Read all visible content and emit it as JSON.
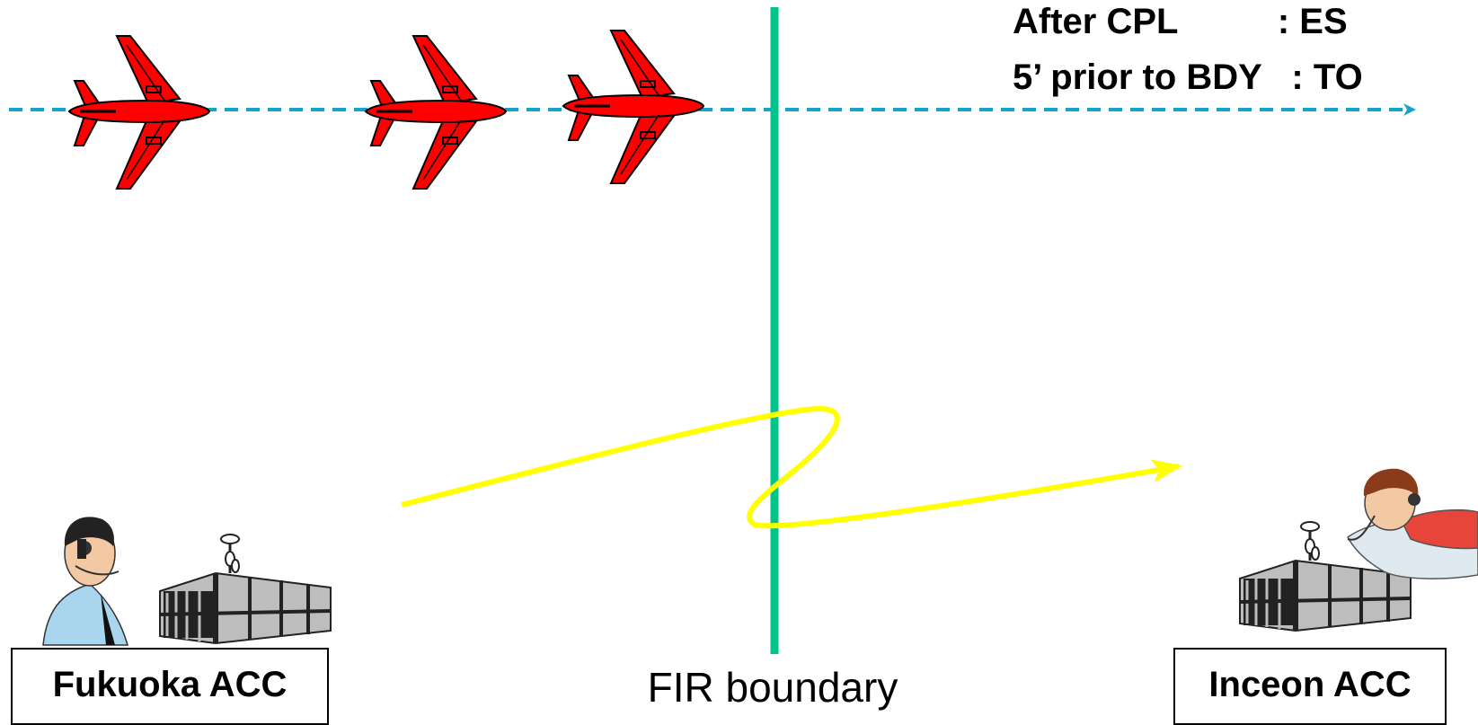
{
  "notes": {
    "line1": "After CPL          : ES",
    "line2": "5’ prior to BDY   : TO"
  },
  "boundary": {
    "label": "FIR boundary"
  },
  "units": {
    "left": "Fukuoka ACC",
    "right": "Inceon ACC"
  },
  "colors": {
    "flight_path": "#1aa3c8",
    "boundary_line": "#00c48c",
    "data_link": "#ffff00",
    "aircraft": "#ff0000",
    "building_dark": "#222222",
    "building_light": "#bdbdbd"
  },
  "icons": {
    "aircraft": "airplane-icon",
    "controller": "air-traffic-controller-icon",
    "facility": "acc-building-icon",
    "link": "zigzag-data-link-arrow"
  }
}
